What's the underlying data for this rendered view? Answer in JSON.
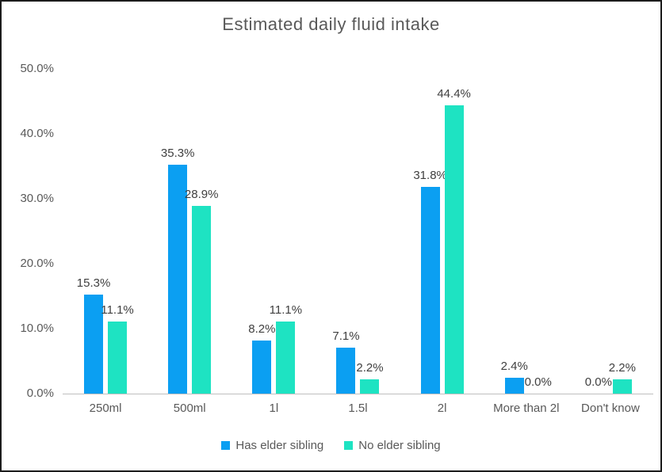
{
  "chart_data": {
    "type": "bar",
    "title": "Estimated daily fluid intake",
    "categories": [
      "250ml",
      "500ml",
      "1l",
      "1.5l",
      "2l",
      "More than 2l",
      "Don't know"
    ],
    "series": [
      {
        "name": "Has elder sibling",
        "color": "#0b9ff2",
        "values": [
          15.3,
          35.3,
          8.2,
          7.1,
          31.8,
          2.4,
          0.0
        ],
        "labels": [
          "15.3%",
          "35.3%",
          "8.2%",
          "7.1%",
          "31.8%",
          "2.4%",
          "0.0%"
        ]
      },
      {
        "name": "No elder sibling",
        "color": "#1ee3c2",
        "values": [
          11.1,
          28.9,
          11.1,
          2.2,
          44.4,
          0.0,
          2.2
        ],
        "labels": [
          "11.1%",
          "28.9%",
          "11.1%",
          "2.2%",
          "44.4%",
          "0.0%",
          "2.2%"
        ]
      }
    ],
    "ylim": [
      0,
      50
    ],
    "yticks": [
      {
        "value": 0,
        "label": "0.0%"
      },
      {
        "value": 10,
        "label": "10.0%"
      },
      {
        "value": 20,
        "label": "20.0%"
      },
      {
        "value": 30,
        "label": "30.0%"
      },
      {
        "value": 40,
        "label": "40.0%"
      },
      {
        "value": 50,
        "label": "50.0%"
      }
    ],
    "grid": false,
    "legend_position": "bottom",
    "xlabel": "",
    "ylabel": ""
  },
  "colors": {
    "title_text": "#595959",
    "axis_text": "#595959",
    "data_label_text": "#404040",
    "axis_line": "#bfbfbf",
    "frame_border": "#1c1c1c",
    "background": "#ffffff"
  }
}
